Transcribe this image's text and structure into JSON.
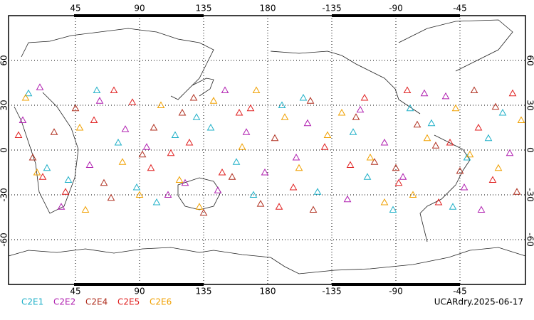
{
  "chart_data": {
    "type": "scatter",
    "xlim": [
      -2,
      361
    ],
    "ylim": [
      -90,
      90
    ],
    "xticks": [
      45,
      90,
      135,
      180,
      {
        "value": 225,
        "label": "-135"
      },
      {
        "value": 270,
        "label": "-90"
      },
      {
        "value": 315,
        "label": "-45"
      }
    ],
    "yticks": [
      60,
      30,
      0,
      -30,
      -60
    ],
    "grid": true,
    "footer": "UCARdry.2025-06-17",
    "series": [
      {
        "name": "C2E1",
        "color": "#20b0c8",
        "x": [
          12,
          40,
          75,
          102,
          130,
          158,
          190,
          215,
          240,
          268,
          295,
          320,
          345,
          25,
          60,
          115,
          170,
          205,
          250,
          280,
          310,
          335,
          88,
          140
        ],
        "values": [
          38,
          -20,
          5,
          -35,
          22,
          -8,
          30,
          -28,
          12,
          -40,
          18,
          -5,
          25,
          -12,
          40,
          10,
          -30,
          35,
          -18,
          28,
          -38,
          8,
          -25,
          15
        ]
      },
      {
        "name": "C2E2",
        "color": "#b020b0",
        "x": [
          8,
          35,
          62,
          95,
          122,
          150,
          178,
          208,
          236,
          262,
          290,
          318,
          350,
          20,
          55,
          110,
          165,
          200,
          245,
          275,
          305,
          330,
          80,
          145
        ],
        "values": [
          20,
          -38,
          33,
          2,
          -22,
          40,
          -15,
          18,
          -33,
          5,
          38,
          -25,
          -2,
          42,
          -10,
          -30,
          12,
          -5,
          27,
          -18,
          36,
          -40,
          14,
          -27
        ]
      },
      {
        "name": "C2E4",
        "color": "#b03020",
        "x": [
          15,
          45,
          70,
          100,
          128,
          155,
          185,
          212,
          242,
          270,
          298,
          325,
          355,
          30,
          65,
          120,
          175,
          210,
          255,
          285,
          315,
          340,
          92,
          135
        ],
        "values": [
          -5,
          28,
          -32,
          15,
          35,
          -18,
          8,
          -40,
          22,
          -12,
          3,
          40,
          -28,
          12,
          -22,
          25,
          -36,
          33,
          -8,
          17,
          -14,
          29,
          -3,
          -42
        ]
      },
      {
        "name": "C2E5",
        "color": "#e02020",
        "x": [
          5,
          38,
          72,
          98,
          125,
          160,
          188,
          220,
          248,
          272,
          300,
          328,
          352,
          22,
          58,
          112,
          168,
          198,
          238,
          278,
          308,
          338,
          85,
          148
        ],
        "values": [
          10,
          -28,
          40,
          -12,
          5,
          25,
          -38,
          2,
          35,
          -22,
          -35,
          15,
          38,
          -18,
          20,
          -2,
          28,
          -25,
          -10,
          40,
          5,
          -20,
          32,
          -15
        ]
      },
      {
        "name": "C2E6",
        "color": "#f0a000",
        "x": [
          18,
          48,
          78,
          105,
          132,
          162,
          192,
          222,
          252,
          282,
          312,
          342,
          10,
          52,
          118,
          172,
          202,
          232,
          262,
          292,
          322,
          358,
          90,
          142
        ],
        "values": [
          -15,
          15,
          -8,
          30,
          -38,
          2,
          22,
          10,
          -5,
          -30,
          28,
          -12,
          35,
          -40,
          -20,
          40,
          -12,
          25,
          -35,
          8,
          -3,
          20,
          -30,
          33
        ]
      }
    ]
  }
}
